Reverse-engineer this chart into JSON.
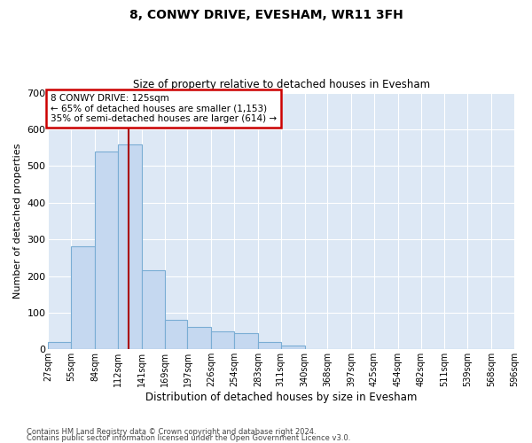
{
  "title1": "8, CONWY DRIVE, EVESHAM, WR11 3FH",
  "title2": "Size of property relative to detached houses in Evesham",
  "xlabel": "Distribution of detached houses by size in Evesham",
  "ylabel": "Number of detached properties",
  "footer1": "Contains HM Land Registry data © Crown copyright and database right 2024.",
  "footer2": "Contains public sector information licensed under the Open Government Licence v3.0.",
  "annotation_line1": "8 CONWY DRIVE: 125sqm",
  "annotation_line2": "← 65% of detached houses are smaller (1,153)",
  "annotation_line3": "35% of semi-detached houses are larger (614) →",
  "bin_edges": [
    27,
    55,
    84,
    112,
    141,
    169,
    197,
    226,
    254,
    283,
    311,
    340,
    368,
    397,
    425,
    454,
    482,
    511,
    539,
    568,
    596
  ],
  "bar_heights": [
    20,
    280,
    540,
    560,
    215,
    80,
    60,
    50,
    45,
    20,
    10,
    0,
    0,
    0,
    0,
    0,
    0,
    0,
    0,
    0
  ],
  "bar_color": "#c5d8f0",
  "bar_edge_color": "#7aadd4",
  "vline_color": "#aa0000",
  "vline_x": 125,
  "annotation_box_color": "#cc0000",
  "bg_color": "#dde8f5",
  "grid_color": "#ffffff",
  "ylim": [
    0,
    700
  ],
  "yticks": [
    0,
    100,
    200,
    300,
    400,
    500,
    600,
    700
  ],
  "figsize": [
    6.0,
    5.0
  ],
  "dpi": 100
}
